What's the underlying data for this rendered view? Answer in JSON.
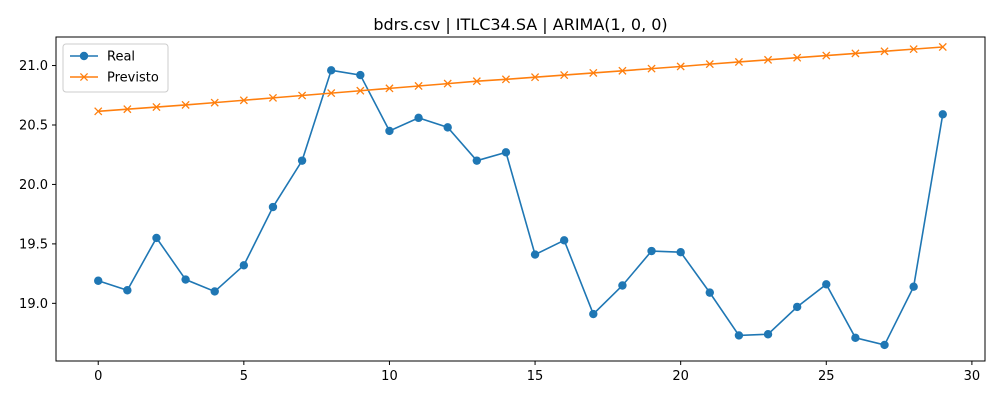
{
  "chart_data": {
    "type": "line",
    "title": "bdrs.csv | ITLC34.SA | ARIMA(1, 0, 0)",
    "xlabel": "",
    "ylabel": "",
    "xlim": [
      -1.45,
      30.45
    ],
    "ylim": [
      18.515,
      21.24
    ],
    "xticks": [
      0,
      5,
      10,
      15,
      20,
      25,
      30
    ],
    "xtick_labels": [
      "0",
      "5",
      "10",
      "15",
      "20",
      "25",
      "30"
    ],
    "yticks": [
      19.0,
      19.5,
      20.0,
      20.5,
      21.0
    ],
    "ytick_labels": [
      "19.0",
      "19.5",
      "20.0",
      "20.5",
      "21.0"
    ],
    "grid": false,
    "legend": {
      "position": "upper-left"
    },
    "x": [
      0,
      1,
      2,
      3,
      4,
      5,
      6,
      7,
      8,
      9,
      10,
      11,
      12,
      13,
      14,
      15,
      16,
      17,
      18,
      19,
      20,
      21,
      22,
      23,
      24,
      25,
      26,
      27,
      28,
      29
    ],
    "series": [
      {
        "name": "Real",
        "color": "#1f77b4",
        "marker": "circle",
        "values": [
          19.19,
          19.11,
          19.55,
          19.2,
          19.1,
          19.32,
          19.81,
          20.2,
          20.96,
          20.92,
          20.45,
          20.56,
          20.48,
          20.2,
          20.27,
          19.41,
          19.53,
          18.91,
          19.15,
          19.44,
          19.43,
          19.09,
          18.73,
          18.74,
          18.97,
          19.16,
          18.71,
          18.65,
          19.14,
          20.59
        ]
      },
      {
        "name": "Previsto",
        "color": "#ff7f0e",
        "marker": "x",
        "values": [
          20.615,
          20.633,
          20.651,
          20.669,
          20.688,
          20.708,
          20.728,
          20.748,
          20.768,
          20.788,
          20.808,
          20.828,
          20.848,
          20.868,
          20.884,
          20.902,
          20.92,
          20.938,
          20.956,
          20.974,
          20.992,
          21.012,
          21.03,
          21.048,
          21.066,
          21.084,
          21.102,
          21.12,
          21.138,
          21.156
        ]
      }
    ]
  }
}
